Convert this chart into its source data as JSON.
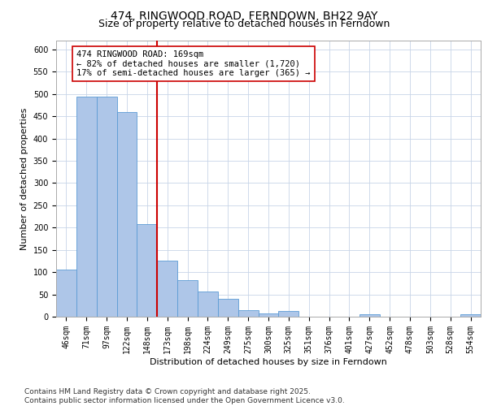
{
  "title": "474, RINGWOOD ROAD, FERNDOWN, BH22 9AY",
  "subtitle": "Size of property relative to detached houses in Ferndown",
  "xlabel": "Distribution of detached houses by size in Ferndown",
  "ylabel": "Number of detached properties",
  "footnote": "Contains HM Land Registry data © Crown copyright and database right 2025.\nContains public sector information licensed under the Open Government Licence v3.0.",
  "annotation_line1": "474 RINGWOOD ROAD: 169sqm",
  "annotation_line2": "← 82% of detached houses are smaller (1,720)",
  "annotation_line3": "17% of semi-detached houses are larger (365) →",
  "categories": [
    "46sqm",
    "71sqm",
    "97sqm",
    "122sqm",
    "148sqm",
    "173sqm",
    "198sqm",
    "224sqm",
    "249sqm",
    "275sqm",
    "300sqm",
    "325sqm",
    "351sqm",
    "376sqm",
    "401sqm",
    "427sqm",
    "452sqm",
    "478sqm",
    "503sqm",
    "528sqm",
    "554sqm"
  ],
  "values": [
    105,
    495,
    495,
    460,
    207,
    125,
    82,
    57,
    40,
    15,
    8,
    12,
    0,
    0,
    0,
    6,
    0,
    0,
    0,
    0,
    6
  ],
  "bar_color": "#aec6e8",
  "bar_edge_color": "#5b9bd5",
  "red_line_color": "#cc0000",
  "annotation_box_edge_color": "#cc0000",
  "annotation_box_face_color": "#ffffff",
  "background_color": "#ffffff",
  "grid_color": "#c8d4e8",
  "ylim": [
    0,
    620
  ],
  "yticks": [
    0,
    50,
    100,
    150,
    200,
    250,
    300,
    350,
    400,
    450,
    500,
    550,
    600
  ],
  "red_line_index": 5,
  "title_fontsize": 10,
  "subtitle_fontsize": 9,
  "axis_label_fontsize": 8,
  "tick_fontsize": 7,
  "annotation_fontsize": 7.5,
  "footnote_fontsize": 6.5
}
